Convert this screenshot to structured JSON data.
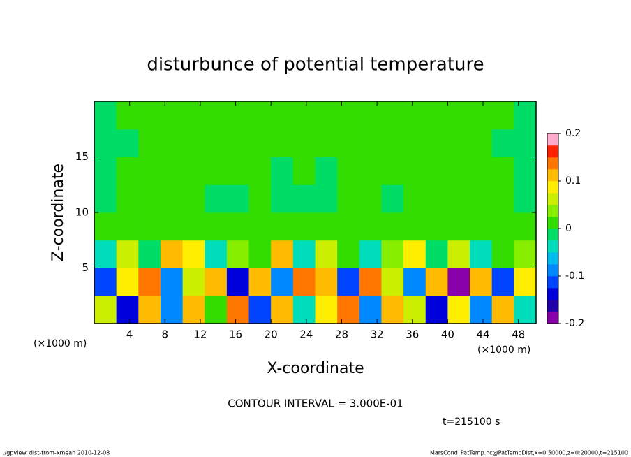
{
  "chart_data": {
    "type": "heatmap",
    "title": "disturbunce of potential temperature",
    "xlabel": "X-coordinate",
    "ylabel": "Z-coordinate",
    "xunit": "(×1000 m)",
    "yunit": "(×1000 m)",
    "contour_note": "CONTOUR INTERVAL = 3.000E-01",
    "time_label": "t=215100 s",
    "footer_left": "./gpview_dist-from-xmean  2010-12-08",
    "footer_right": "MarsCond_PatTemp.nc@PatTempDist,x=0:50000,z=0:20000,t=215100",
    "xlim": [
      0,
      50
    ],
    "ylim": [
      0,
      20
    ],
    "xticks": [
      4,
      8,
      12,
      16,
      20,
      24,
      28,
      32,
      36,
      40,
      44,
      48
    ],
    "yticks": [
      5,
      10,
      15
    ],
    "xbins": [
      0,
      2.5,
      5,
      7.5,
      10,
      12.5,
      15,
      17.5,
      20,
      22.5,
      25,
      27.5,
      30,
      32.5,
      35,
      37.5,
      40,
      42.5,
      45,
      47.5,
      50
    ],
    "zbins": [
      0,
      2.5,
      5,
      7.5,
      10,
      12.5,
      15,
      17.5,
      20
    ],
    "values": [
      [
        0.05,
        -0.15,
        0.1,
        -0.08,
        0.12,
        0,
        0.15,
        -0.12,
        0.1,
        -0.05,
        0.08,
        0.15,
        -0.1,
        0.12,
        0.05,
        -0.15,
        0.08,
        -0.1,
        0.1,
        -0.05
      ],
      [
        -0.12,
        0.08,
        0.15,
        -0.1,
        0.05,
        0.12,
        -0.15,
        0.1,
        -0.08,
        0.15,
        0.1,
        -0.12,
        0.15,
        0.05,
        -0.1,
        0.12,
        -0.18,
        0.1,
        -0.12,
        0.08
      ],
      [
        -0.05,
        0.05,
        -0.02,
        0.1,
        0.08,
        -0.05,
        0.03,
        0.02,
        0.1,
        -0.03,
        0.05,
        0.02,
        -0.05,
        0.03,
        0.08,
        -0.02,
        0.05,
        -0.03,
        0.02,
        0.04
      ],
      [
        0.02,
        0.01,
        0.02,
        0.01,
        0.02,
        0,
        0.01,
        0.02,
        0.01,
        0.02,
        0.01,
        0,
        0.02,
        0.01,
        0.02,
        0.01,
        0,
        0.01,
        0.02,
        0.01
      ],
      [
        -0.01,
        0.005,
        0.005,
        0.005,
        0.005,
        -0.01,
        -0.01,
        0.005,
        -0.01,
        -0.01,
        -0.01,
        0.005,
        0.005,
        -0.01,
        0.005,
        0.005,
        0.005,
        0.005,
        0.005,
        -0.01
      ],
      [
        -0.01,
        0.005,
        0.005,
        0.005,
        0.005,
        0.005,
        0.005,
        0.005,
        -0.01,
        0.005,
        -0.01,
        0.005,
        0.005,
        0.005,
        0.005,
        0.005,
        0.005,
        0.005,
        0.005,
        -0.01
      ],
      [
        -0.02,
        -0.01,
        0.005,
        0.005,
        0.005,
        0.005,
        0.005,
        0.005,
        0.005,
        0.005,
        0.005,
        0.005,
        0.005,
        0.005,
        0.005,
        0.005,
        0.005,
        0.005,
        -0.01,
        -0.02
      ],
      [
        -0.01,
        0.005,
        0.005,
        0.005,
        0.005,
        0.005,
        0.005,
        0.005,
        0.005,
        0.005,
        0.005,
        0.005,
        0.005,
        0.005,
        0.005,
        0.005,
        0.005,
        0.005,
        0.005,
        -0.01
      ]
    ],
    "colorbar": {
      "lim": [
        -0.2,
        0.2
      ],
      "ticks": [
        -0.2,
        -0.1,
        0,
        0.1,
        0.2
      ],
      "colors": [
        "#8800aa",
        "#2200aa",
        "#0000dd",
        "#0044ff",
        "#0088ff",
        "#00bbee",
        "#00ddbb",
        "#00dd66",
        "#33dd00",
        "#88ee00",
        "#ccee00",
        "#ffee00",
        "#ffbb00",
        "#ff7700",
        "#ff2200",
        "#ffaacc"
      ]
    }
  }
}
